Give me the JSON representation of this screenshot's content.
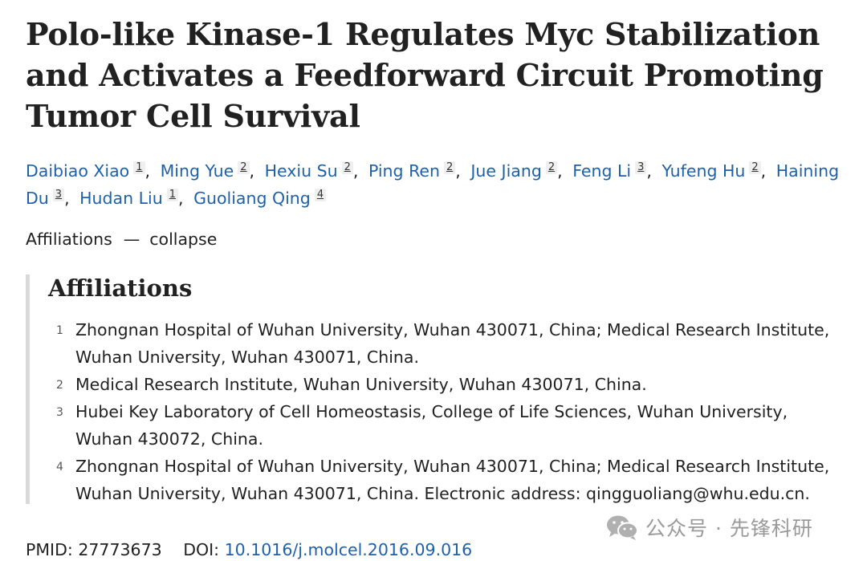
{
  "title": "Polo-like Kinase-1 Regulates Myc Stabilization and Activates a Feedforward Circuit Promoting Tumor Cell Survival",
  "authors": [
    {
      "name": "Daibiao Xiao",
      "aff": "1"
    },
    {
      "name": "Ming Yue",
      "aff": "2"
    },
    {
      "name": "Hexiu Su",
      "aff": "2"
    },
    {
      "name": "Ping Ren",
      "aff": "2"
    },
    {
      "name": "Jue Jiang",
      "aff": "2"
    },
    {
      "name": "Feng Li",
      "aff": "3"
    },
    {
      "name": "Yufeng Hu",
      "aff": "2"
    },
    {
      "name": "Haining Du",
      "aff": "3"
    },
    {
      "name": "Hudan Liu",
      "aff": "1"
    },
    {
      "name": "Guoliang Qing",
      "aff": "4"
    }
  ],
  "affiliations_toggle": {
    "label": "Affiliations",
    "dash": "—",
    "action": "collapse"
  },
  "affiliations": {
    "heading": "Affiliations",
    "items": [
      {
        "num": "1",
        "text": "Zhongnan Hospital of Wuhan University, Wuhan 430071, China; Medical Research Institute, Wuhan University, Wuhan 430071, China."
      },
      {
        "num": "2",
        "text": "Medical Research Institute, Wuhan University, Wuhan 430071, China."
      },
      {
        "num": "3",
        "text": "Hubei Key Laboratory of Cell Homeostasis, College of Life Sciences, Wuhan University, Wuhan 430072, China."
      },
      {
        "num": "4",
        "text": "Zhongnan Hospital of Wuhan University, Wuhan 430071, China; Medical Research Institute, Wuhan University, Wuhan 430071, China. Electronic address: qingguoliang@whu.edu.cn."
      }
    ]
  },
  "identifiers": {
    "pmid_label": "PMID:",
    "pmid": "27773673",
    "doi_label": "DOI:",
    "doi": "10.1016/j.molcel.2016.09.016"
  },
  "watermark": {
    "text": "公众号 · 先锋科研",
    "icon": "wechat-icon"
  }
}
